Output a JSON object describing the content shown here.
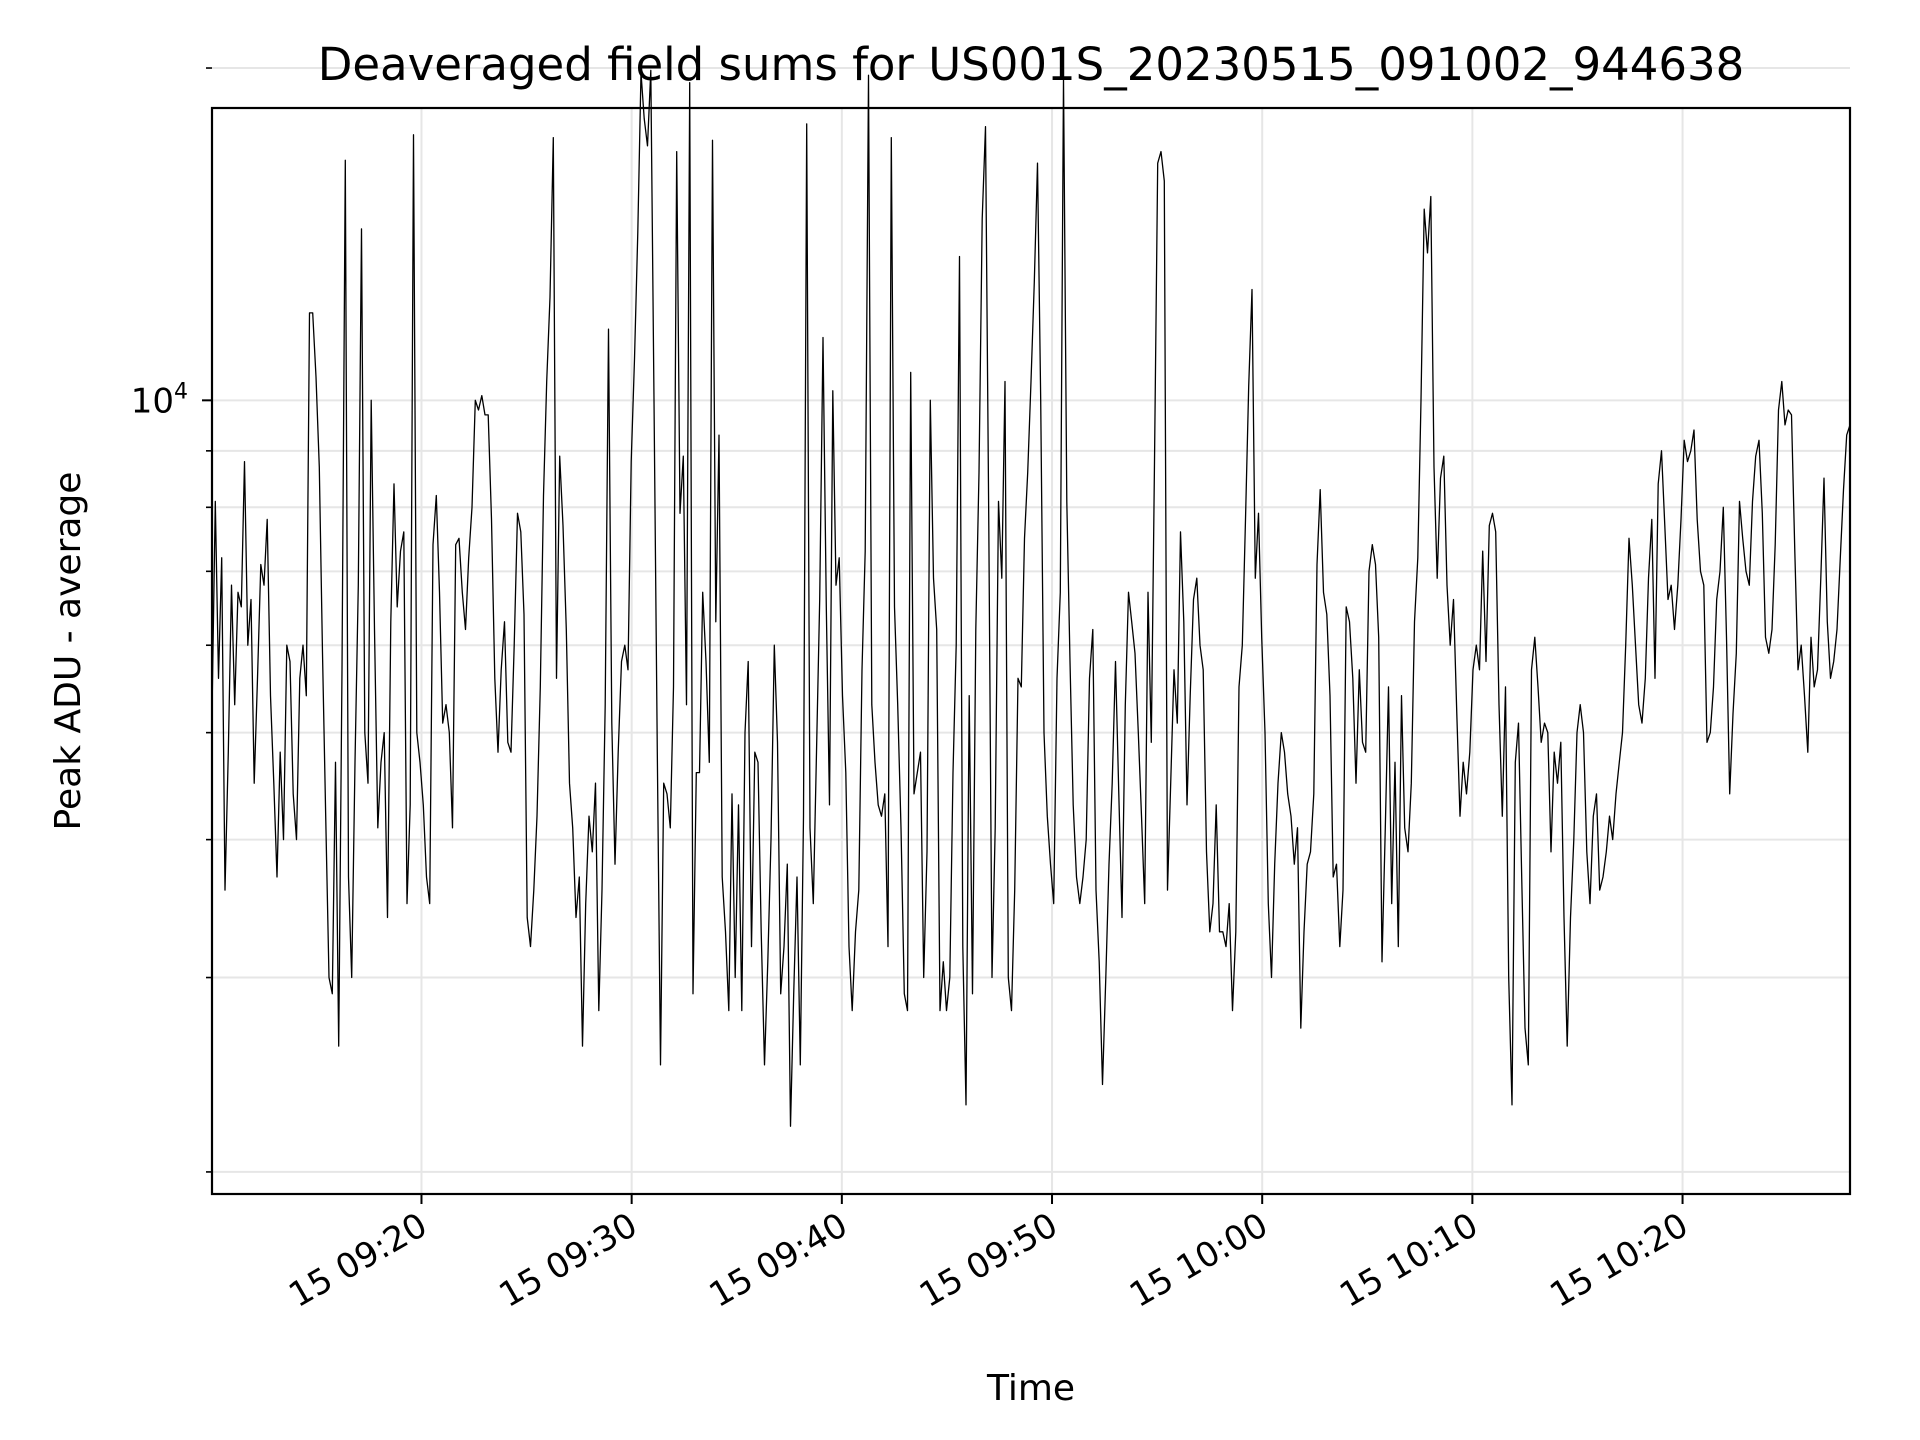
{
  "chart_data": {
    "type": "line",
    "title": "Deaveraged field sums for US001S_20230515_091002_944638",
    "xlabel": "Time",
    "ylabel": "Peak ADU - average",
    "x_axis": {
      "kind": "time",
      "range": [
        "2023-05-15 09:10:02",
        "2023-05-15 10:27:58"
      ],
      "ticks": [
        {
          "label": "15 09:20",
          "value": "2023-05-15 09:20:00"
        },
        {
          "label": "15 09:30",
          "value": "2023-05-15 09:30:00"
        },
        {
          "label": "15 09:40",
          "value": "2023-05-15 09:40:00"
        },
        {
          "label": "15 09:50",
          "value": "2023-05-15 09:50:00"
        },
        {
          "label": "15 10:00",
          "value": "2023-05-15 10:00:00"
        },
        {
          "label": "15 10:10",
          "value": "2023-05-15 10:10:00"
        },
        {
          "label": "15 10:20",
          "value": "2023-05-15 10:20:00"
        }
      ]
    },
    "y_axis": {
      "scale": "log",
      "range": [
        1910,
        18400
      ],
      "major_ticks": [
        {
          "value": 10000,
          "label_base": "10",
          "label_exp": "4"
        }
      ],
      "minor_ticks": [
        2000,
        3000,
        4000,
        5000,
        6000,
        7000,
        8000,
        9000,
        20000
      ]
    },
    "grid": true,
    "line_color": "#000000",
    "series": [
      {
        "x_start": "2023-05-15 09:10:02",
        "x_end": "2023-05-15 10:27:58",
        "values": [
          5200,
          8100,
          5600,
          7200,
          3600,
          4800,
          6800,
          5300,
          6700,
          6500,
          8800,
          6000,
          6600,
          4500,
          5600,
          7100,
          6800,
          7800,
          5400,
          4500,
          3700,
          4800,
          4000,
          6000,
          5800,
          4400,
          4000,
          5600,
          6000,
          5400,
          12000,
          12000,
          10500,
          8700,
          5900,
          4200,
          3000,
          2900,
          4700,
          2600,
          5700,
          16500,
          3700,
          3000,
          4700,
          6800,
          14300,
          5000,
          4500,
          10000,
          6200,
          4100,
          4700,
          5000,
          3400,
          6300,
          8400,
          6500,
          7300,
          7600,
          3500,
          4300,
          17400,
          5000,
          4700,
          4300,
          3700,
          3500,
          7400,
          8200,
          6700,
          5100,
          5300,
          5000,
          4100,
          7400,
          7500,
          6700,
          6200,
          7200,
          8000,
          10000,
          9800,
          10100,
          9700,
          9700,
          7800,
          5600,
          4800,
          5700,
          6300,
          4900,
          4800,
          6000,
          7900,
          7600,
          6400,
          3400,
          3200,
          3600,
          4200,
          5500,
          8200,
          10400,
          12400,
          17300,
          5600,
          8900,
          7700,
          6200,
          4500,
          4100,
          3400,
          3700,
          2600,
          3500,
          4200,
          3900,
          4500,
          2800,
          3600,
          5300,
          11600,
          5100,
          3800,
          4800,
          5800,
          6000,
          5700,
          8800,
          10900,
          14200,
          19800,
          18000,
          17000,
          19900,
          10000,
          4800,
          2500,
          4500,
          4400,
          4100,
          5500,
          16800,
          7900,
          8900,
          5300,
          19400,
          2900,
          4600,
          4600,
          6700,
          5800,
          4700,
          17200,
          6300,
          9300,
          3700,
          3300,
          2800,
          4400,
          3000,
          4300,
          2800,
          5000,
          5800,
          3200,
          4800,
          4700,
          3300,
          2500,
          3100,
          4000,
          6000,
          4900,
          2900,
          3200,
          3800,
          2200,
          2900,
          3700,
          2500,
          4200,
          17800,
          4100,
          3500,
          4800,
          6600,
          11400,
          6500,
          4300,
          10200,
          6800,
          7200,
          5400,
          4600,
          3200,
          2800,
          3300,
          3600,
          5700,
          7300,
          19700,
          5300,
          4700,
          4300,
          4200,
          4400,
          3200,
          17300,
          6500,
          5300,
          4100,
          2900,
          2800,
          10600,
          4400,
          4600,
          4800,
          3000,
          3900,
          10000,
          6900,
          6200,
          2800,
          3100,
          2800,
          3000,
          4600,
          6000,
          13500,
          3200,
          2300,
          5400,
          2900,
          6200,
          8600,
          14600,
          17700,
          7700,
          3000,
          4100,
          8100,
          6900,
          10400,
          3000,
          2800,
          3600,
          5600,
          5500,
          7500,
          8600,
          10400,
          12800,
          16400,
          10000,
          5000,
          4200,
          3800,
          3500,
          5600,
          6700,
          19600,
          8100,
          5800,
          4300,
          3700,
          3500,
          3700,
          4000,
          5600,
          6200,
          3600,
          3100,
          2400,
          3000,
          3800,
          4500,
          5800,
          4400,
          3400,
          5300,
          6700,
          6300,
          5900,
          5000,
          4200,
          3500,
          6700,
          4900,
          8800,
          16400,
          16800,
          15800,
          3600,
          4500,
          5700,
          5100,
          7600,
          6300,
          4300,
          5400,
          6600,
          6900,
          6000,
          5700,
          3900,
          3300,
          3500,
          4300,
          3300,
          3300,
          3200,
          3500,
          2800,
          3300,
          5500,
          6000,
          7800,
          10300,
          12600,
          6900,
          7900,
          6100,
          5000,
          3500,
          3000,
          3800,
          4500,
          5000,
          4800,
          4400,
          4200,
          3800,
          4100,
          2700,
          3300,
          3800,
          3900,
          4400,
          7100,
          8300,
          6700,
          6400,
          5400,
          3700,
          3800,
          3200,
          3600,
          6500,
          6300,
          5600,
          4500,
          5700,
          4900,
          4800,
          7000,
          7400,
          7100,
          6100,
          3100,
          4100,
          5500,
          3500,
          4700,
          3200,
          5400,
          4100,
          3900,
          4500,
          6300,
          7200,
          10000,
          14900,
          13600,
          15300,
          8700,
          6900,
          8500,
          8900,
          6800,
          6000,
          6600,
          5200,
          4200,
          4700,
          4400,
          4800,
          5700,
          6000,
          5700,
          7300,
          5800,
          7700,
          7900,
          7600,
          5300,
          4200,
          5500,
          3000,
          2300,
          4700,
          5100,
          3700,
          2700,
          2500,
          5700,
          6100,
          5500,
          4900,
          5100,
          5000,
          3900,
          4800,
          4500,
          4900,
          3400,
          2600,
          3400,
          4000,
          5000,
          5300,
          5000,
          3900,
          3500,
          4200,
          4400,
          3600,
          3700,
          3900,
          4200,
          4000,
          4400,
          4700,
          5000,
          6000,
          7500,
          6800,
          6000,
          5300,
          5100,
          5600,
          6900,
          7800,
          5600,
          8400,
          9000,
          7700,
          6600,
          6800,
          6200,
          6800,
          7800,
          9200,
          8800,
          9000,
          9400,
          7800,
          7000,
          6800,
          4900,
          5000,
          5500,
          6600,
          7000,
          8000,
          6100,
          4400,
          5200,
          5900,
          8100,
          7500,
          7000,
          6800,
          8100,
          8900,
          9200,
          7900,
          6100,
          5900,
          6200,
          7400,
          9800,
          10400,
          9500,
          9800,
          9700,
          7300,
          5700,
          6000,
          5400,
          4800,
          6100,
          5500,
          5700,
          6900,
          8500,
          6300,
          5600,
          5800,
          6200,
          7200,
          8300,
          9300,
          9500
        ]
      }
    ]
  }
}
